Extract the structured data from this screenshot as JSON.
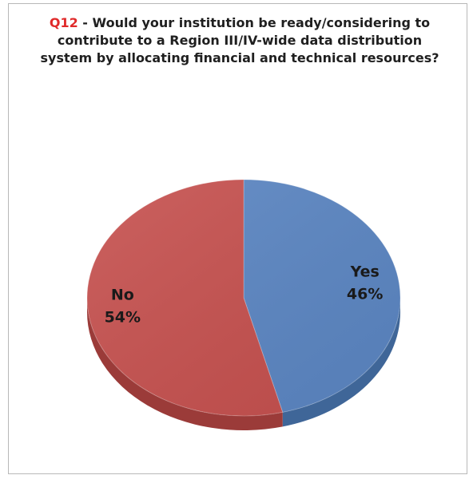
{
  "chart_data": {
    "type": "pie",
    "title_tag": "Q12",
    "title": " - Would your institution be ready/considering to contribute to a Region III/IV-wide data distribution system by allocating financial and technical resources?",
    "labels": [
      "Yes",
      "No"
    ],
    "values": [
      46,
      54
    ],
    "value_labels": [
      "46%",
      "54%"
    ],
    "colors": [
      "#5b86c3",
      "#c6504e"
    ],
    "side_colors": [
      "#3f6698",
      "#9b3b39"
    ],
    "style": "3d",
    "legend": "none"
  }
}
